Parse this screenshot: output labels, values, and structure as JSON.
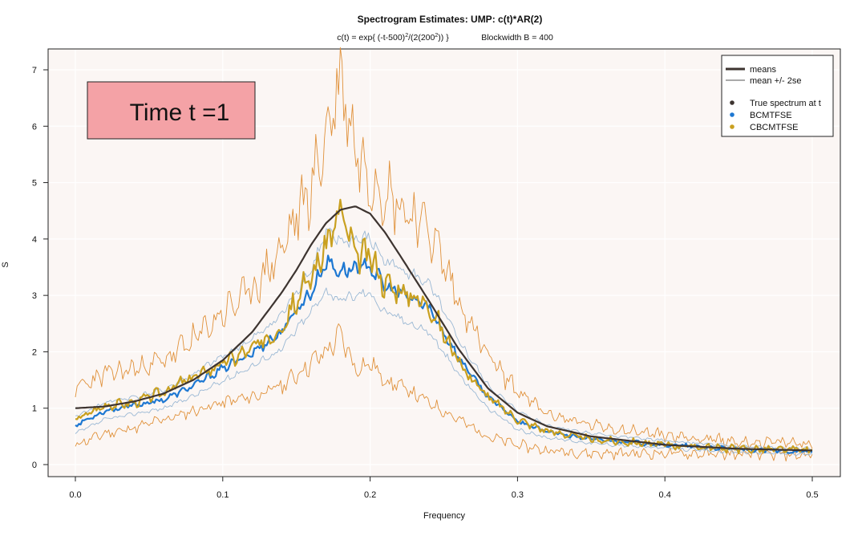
{
  "chart_data": {
    "type": "line",
    "title": "Spectrogram Estimates: UMP: c(t)*AR(2)",
    "subtitle": {
      "formula_prefix": "c(t) = exp{ (-t-500)",
      "formula_sup1": "2",
      "formula_mid": "/(2(200",
      "formula_sup2": "2",
      "formula_suffix": ")) }",
      "blockwidth": "Blockwidth B = 400"
    },
    "xlabel": "Frequency",
    "ylabel": "S",
    "xlim": [
      0,
      0.5
    ],
    "ylim": [
      0,
      7
    ],
    "x_ticks": [
      "0.0",
      "0.1",
      "0.2",
      "0.3",
      "0.4",
      "0.5"
    ],
    "y_ticks": [
      "0",
      "1",
      "2",
      "3",
      "4",
      "5",
      "6",
      "7"
    ],
    "time_label": "Time t =1",
    "legend": {
      "position": "top-right",
      "lines": [
        "means",
        "mean +/- 2se"
      ],
      "points": [
        "True spectrum at t",
        "BCMTFSE",
        "CBCMTFSE"
      ]
    },
    "colors": {
      "true": "#3d3430",
      "bcmtfse": "#1e78d2",
      "bcmtfse_band": "#9ab8d4",
      "cbcmtfse": "#c9a020",
      "cbcmtfse_band": "#e0913a",
      "time_box_fill": "#f4a2a6",
      "plot_bg": "#fbf6f4"
    },
    "x": [
      0.0,
      0.02,
      0.04,
      0.06,
      0.08,
      0.1,
      0.12,
      0.14,
      0.15,
      0.16,
      0.17,
      0.18,
      0.19,
      0.2,
      0.21,
      0.22,
      0.24,
      0.26,
      0.28,
      0.3,
      0.32,
      0.35,
      0.4,
      0.45,
      0.5
    ],
    "series": [
      {
        "name": "True spectrum at t",
        "values": [
          1.0,
          1.03,
          1.12,
          1.26,
          1.5,
          1.85,
          2.35,
          3.05,
          3.45,
          3.9,
          4.28,
          4.52,
          4.58,
          4.45,
          4.12,
          3.72,
          2.9,
          2.05,
          1.35,
          0.92,
          0.68,
          0.5,
          0.35,
          0.28,
          0.25
        ]
      },
      {
        "name": "BCMTFSE",
        "values": [
          0.7,
          0.95,
          1.05,
          1.15,
          1.4,
          1.7,
          1.98,
          2.35,
          2.75,
          3.05,
          3.6,
          3.42,
          3.5,
          3.52,
          3.15,
          3.05,
          2.78,
          1.9,
          1.2,
          0.78,
          0.58,
          0.45,
          0.35,
          0.27,
          0.22
        ]
      },
      {
        "name": "BCMTFSE mean +/- 2se lower",
        "values": [
          0.55,
          0.8,
          0.9,
          1.0,
          1.22,
          1.48,
          1.75,
          2.05,
          2.4,
          2.7,
          3.1,
          2.9,
          3.0,
          3.05,
          2.7,
          2.6,
          2.35,
          1.6,
          1.0,
          0.62,
          0.48,
          0.38,
          0.29,
          0.22,
          0.18
        ]
      },
      {
        "name": "BCMTFSE mean +/- 2se upper",
        "values": [
          0.85,
          1.1,
          1.2,
          1.32,
          1.6,
          1.92,
          2.22,
          2.65,
          3.1,
          3.45,
          4.1,
          3.95,
          4.0,
          4.0,
          3.6,
          3.5,
          3.2,
          2.2,
          1.4,
          0.95,
          0.7,
          0.55,
          0.42,
          0.32,
          0.28
        ]
      },
      {
        "name": "CBCMTFSE",
        "values": [
          0.8,
          1.05,
          1.1,
          1.3,
          1.55,
          1.8,
          2.05,
          2.45,
          2.95,
          3.3,
          3.9,
          4.5,
          3.7,
          3.7,
          3.2,
          3.1,
          2.85,
          1.8,
          1.2,
          0.8,
          0.6,
          0.45,
          0.35,
          0.28,
          0.25
        ]
      },
      {
        "name": "CBCMTFSE mean +/- 2se lower",
        "values": [
          0.35,
          0.55,
          0.65,
          0.8,
          0.95,
          1.1,
          1.2,
          1.4,
          1.6,
          1.8,
          2.0,
          2.3,
          1.7,
          1.8,
          1.5,
          1.4,
          1.1,
          0.8,
          0.5,
          0.35,
          0.25,
          0.2,
          0.2,
          0.18,
          0.17
        ]
      },
      {
        "name": "CBCMTFSE mean +/- 2se upper",
        "values": [
          1.35,
          1.6,
          1.7,
          1.85,
          2.2,
          2.7,
          3.1,
          3.8,
          4.4,
          4.9,
          5.8,
          6.9,
          5.6,
          5.1,
          4.9,
          4.6,
          4.2,
          2.9,
          1.9,
          1.3,
          0.9,
          0.7,
          0.52,
          0.4,
          0.38
        ]
      }
    ]
  }
}
